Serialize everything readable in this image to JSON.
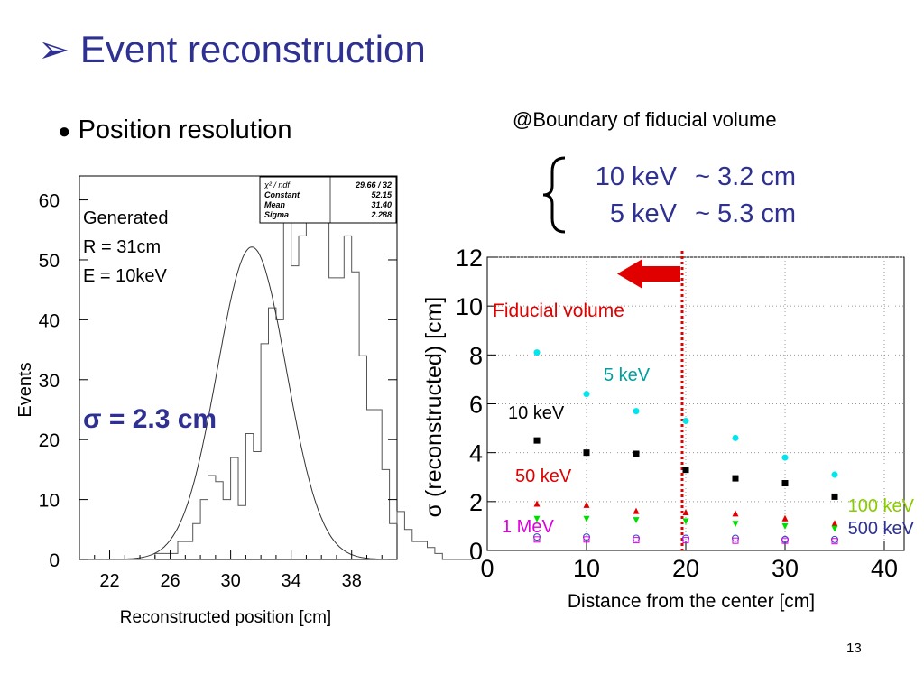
{
  "slide": {
    "title_marker": "➢",
    "title": "Event reconstruction",
    "bullet_marker": "●",
    "bullet": "Position resolution",
    "boundary_note": "@Boundary of fiducial volume",
    "resolution": [
      {
        "energy": "10 keV",
        "value": "~ 3.2 cm"
      },
      {
        "energy": "5 keV",
        "value": "~ 5.3 cm"
      }
    ],
    "page_number": "13"
  },
  "chart_data": [
    {
      "type": "histogram",
      "xlabel": "Reconstructed position [cm]",
      "ylabel": "Events",
      "xlim": [
        20,
        41
      ],
      "ylim": [
        0,
        64
      ],
      "x_ticks": [
        22,
        26,
        30,
        34,
        38
      ],
      "y_ticks": [
        0,
        10,
        20,
        30,
        40,
        50,
        60
      ],
      "bin_width": 0.5,
      "bin_start": 22,
      "counts": [
        0,
        0,
        0,
        0,
        0,
        0,
        1,
        1,
        1,
        3,
        3,
        6,
        10,
        14,
        13,
        10,
        17,
        9,
        21,
        18,
        36,
        42,
        40,
        58,
        49,
        54,
        57,
        60,
        57,
        47,
        47,
        54,
        48,
        34,
        25,
        25,
        15,
        6,
        8,
        5,
        3,
        3,
        2,
        1,
        0,
        0,
        0,
        0
      ],
      "fit": {
        "type": "gaussian",
        "constant": 52.15,
        "mean": 31.4,
        "sigma": 2.288
      },
      "annotations": {
        "generated": [
          "Generated",
          "R = 31cm",
          "E = 10keV"
        ],
        "sigma_text": "σ = 2.3 cm"
      },
      "stats_box": [
        {
          "label": "χ² / ndf",
          "value": "29.66  /  32"
        },
        {
          "label": "Constant",
          "value": "52.15"
        },
        {
          "label": "Mean",
          "value": "31.40"
        },
        {
          "label": "Sigma",
          "value": "2.288"
        }
      ]
    },
    {
      "type": "scatter",
      "xlabel": "Distance from the center [cm]",
      "ylabel": "σ (reconstructed) [cm]",
      "xlim": [
        0,
        42
      ],
      "ylim": [
        0,
        12
      ],
      "x_ticks": [
        0,
        10,
        20,
        30,
        40
      ],
      "y_ticks": [
        0,
        2,
        4,
        6,
        8,
        10,
        12
      ],
      "x": [
        5,
        10,
        15,
        20,
        25,
        30,
        35
      ],
      "fiducial_boundary": 20,
      "fiducial_label": "Fiducial volume",
      "series": [
        {
          "name": "5 keV",
          "color": "#00e5ee",
          "marker": "circle",
          "values": [
            8.1,
            6.4,
            5.7,
            5.3,
            4.6,
            3.8,
            3.1
          ]
        },
        {
          "name": "10 keV",
          "color": "#000000",
          "marker": "square",
          "values": [
            4.5,
            4.0,
            3.95,
            3.3,
            2.95,
            2.75,
            2.2
          ]
        },
        {
          "name": "50 keV",
          "color": "#e00000",
          "marker": "triangle-up",
          "values": [
            1.9,
            1.85,
            1.6,
            1.55,
            1.5,
            1.3,
            1.1
          ]
        },
        {
          "name": "100 keV",
          "color": "#00dd00",
          "marker": "triangle-down",
          "values": [
            1.3,
            1.3,
            1.25,
            1.2,
            1.1,
            1.0,
            0.9
          ]
        },
        {
          "name": "500 keV",
          "color": "#3344cc",
          "marker": "open-circle",
          "values": [
            0.55,
            0.55,
            0.5,
            0.5,
            0.5,
            0.45,
            0.45
          ]
        },
        {
          "name": "1 MeV",
          "color": "#dd00dd",
          "marker": "open-square",
          "values": [
            0.45,
            0.45,
            0.42,
            0.42,
            0.4,
            0.4,
            0.38
          ]
        }
      ]
    }
  ]
}
